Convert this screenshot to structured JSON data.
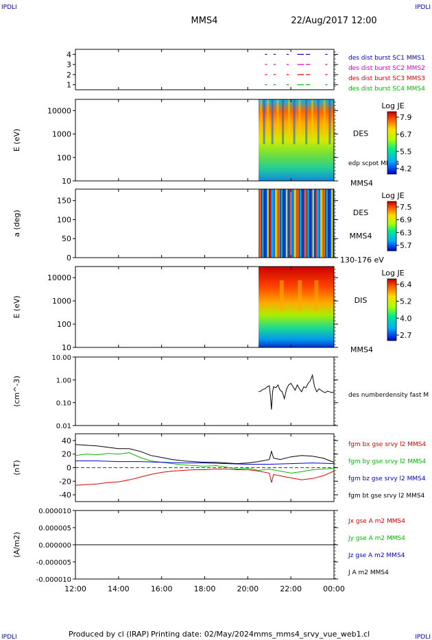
{
  "header": {
    "corner_label": "IPDLI",
    "spacecraft": "MMS4",
    "date": "22/Aug/2017 12:00"
  },
  "footer": {
    "produced_by": "Produced by cl (IRAP)",
    "printing_date": "Printing date: 02/May/2024",
    "filename": "mms_mms4_srvy_vue_web1.cl"
  },
  "chart_data": {
    "type": "line",
    "x_axis": {
      "ticks": [
        "12:00",
        "14:00",
        "16:00",
        "18:00",
        "20:00",
        "22:00",
        "00:00"
      ],
      "range_hours": [
        12,
        24
      ]
    },
    "panels": [
      {
        "id": "burst",
        "ylim": [
          0.5,
          4.5
        ],
        "yticks": [
          "1",
          "2",
          "3",
          "4"
        ],
        "legend": [
          {
            "label": "des dist burst SC1 MMS1",
            "color": "#0000cc"
          },
          {
            "label": "des dist burst SC2 MMS2",
            "color": "#cc00cc"
          },
          {
            "label": "des dist burst SC3 MMS3",
            "color": "#dd0000"
          },
          {
            "label": "des dist burst SC4 MMS4",
            "color": "#00bb00"
          }
        ],
        "burst_intervals_hours": [
          [
            20.8,
            20.9
          ],
          [
            21.2,
            21.3
          ],
          [
            21.8,
            21.9
          ],
          [
            22.3,
            22.6
          ],
          [
            22.7,
            22.9
          ],
          [
            23.6,
            23.7
          ]
        ]
      },
      {
        "id": "des_energy",
        "ylabel": "E (eV)",
        "scale": "log",
        "ylim": [
          10,
          30000
        ],
        "yticks": [
          "10",
          "100",
          "1000",
          "10000"
        ],
        "label_right": "DES",
        "sub_label": "edp scpot MMS4",
        "bottom_label": "MMS4",
        "colorbar": {
          "title": "Log JE",
          "ticks": [
            "7.9",
            "6.7",
            "5.5",
            "4.2"
          ]
        },
        "data_start_hours": 20.5
      },
      {
        "id": "des_pitch",
        "ylabel": "a (deg)",
        "ylim": [
          0,
          180
        ],
        "yticks": [
          "0",
          "50",
          "100",
          "150"
        ],
        "label_right": "DES",
        "sub_label": "MMS4",
        "bottom_label": "130-176 eV",
        "colorbar": {
          "title": "Log JE",
          "ticks": [
            "7.5",
            "6.9",
            "6.3",
            "5.7"
          ]
        },
        "data_start_hours": 20.5
      },
      {
        "id": "dis_energy",
        "ylabel": "E (eV)",
        "scale": "log",
        "ylim": [
          10,
          30000
        ],
        "yticks": [
          "10",
          "100",
          "1000",
          "10000"
        ],
        "label_right": "DIS",
        "bottom_label": "MMS4",
        "colorbar": {
          "title": "Log JE",
          "ticks": [
            "6.4",
            "5.2",
            "4.0",
            "2.7"
          ]
        },
        "data_start_hours": 20.5
      },
      {
        "id": "density",
        "ylabel": "(cm^-3)",
        "scale": "log",
        "ylim": [
          0.01,
          10
        ],
        "yticks": [
          "0.01",
          "0.10",
          "1.00",
          "10.00"
        ],
        "series": [
          {
            "name": "des numberdensity fast M",
            "color": "#000000",
            "x": [
              20.5,
              20.6,
              20.7,
              20.8,
              20.9,
              21.0,
              21.05,
              21.1,
              21.15,
              21.2,
              21.3,
              21.4,
              21.5,
              21.6,
              21.7,
              21.8,
              21.9,
              22.0,
              22.1,
              22.2,
              22.3,
              22.4,
              22.5,
              22.6,
              22.7,
              22.8,
              22.9,
              23.0,
              23.1,
              23.2,
              23.3,
              23.4,
              23.5,
              23.6,
              23.7,
              23.8,
              23.9,
              24.0
            ],
            "y": [
              0.3,
              0.32,
              0.38,
              0.4,
              0.5,
              0.55,
              0.2,
              0.05,
              0.3,
              0.5,
              0.45,
              0.6,
              0.35,
              0.3,
              0.15,
              0.4,
              0.6,
              0.7,
              0.5,
              0.35,
              0.6,
              0.4,
              0.3,
              0.5,
              0.45,
              0.7,
              0.9,
              1.6,
              0.5,
              0.3,
              0.4,
              0.35,
              0.3,
              0.28,
              0.32,
              0.3,
              0.28,
              0.3
            ]
          }
        ]
      },
      {
        "id": "b_field",
        "ylabel": "(nT)",
        "ylim": [
          -50,
          50
        ],
        "yticks": [
          "-40",
          "-20",
          "0",
          "20",
          "40"
        ],
        "series": [
          {
            "name": "fgm bx gse srvy l2 MMS4",
            "color": "#dd0000",
            "x": [
              12,
              12.5,
              13,
              13.5,
              14,
              14.5,
              15,
              15.5,
              16,
              16.5,
              17,
              17.5,
              18,
              18.5,
              19,
              19.5,
              20,
              20.5,
              21,
              21.1,
              21.2,
              21.5,
              22,
              22.5,
              23,
              23.5,
              24
            ],
            "y": [
              -26,
              -25,
              -24,
              -22,
              -21,
              -18,
              -14,
              -10,
              -7,
              -5,
              -4,
              -3,
              -3,
              -2,
              -2,
              -3,
              -3,
              -5,
              -8,
              -22,
              -10,
              -12,
              -15,
              -18,
              -16,
              -12,
              -5
            ]
          },
          {
            "name": "fgm by gse srvy l2 MMS4",
            "color": "#00bb00",
            "x": [
              12,
              12.5,
              13,
              13.5,
              14,
              14.5,
              15,
              15.5,
              16,
              16.5,
              17,
              17.5,
              18,
              18.5,
              19,
              19.5,
              20,
              20.5,
              21,
              21.5,
              22,
              22.5,
              23,
              23.5,
              24
            ],
            "y": [
              18,
              20,
              19,
              21,
              20,
              22,
              15,
              10,
              8,
              6,
              4,
              3,
              2,
              3,
              1,
              -2,
              -1,
              -4,
              -2,
              -5,
              -8,
              -6,
              -3,
              -2,
              -1
            ]
          },
          {
            "name": "fgm bz gse srvy l2 MMS4",
            "color": "#0000cc",
            "x": [
              12,
              13,
              14,
              15,
              16,
              17,
              18,
              19,
              20,
              21,
              22,
              23,
              24
            ],
            "y": [
              10,
              10,
              9,
              9,
              8,
              7,
              7,
              6,
              5,
              5,
              6,
              7,
              6
            ]
          },
          {
            "name": "fgm bt gse srvy l2 MMS4",
            "color": "#000000",
            "x": [
              12,
              12.5,
              13,
              13.5,
              14,
              14.5,
              15,
              15.5,
              16,
              16.5,
              17,
              17.5,
              18,
              18.5,
              19,
              19.5,
              20,
              20.5,
              21,
              21.1,
              21.2,
              21.5,
              22,
              22.5,
              23,
              23.5,
              24
            ],
            "y": [
              34,
              33,
              32,
              30,
              28,
              28,
              24,
              18,
              15,
              12,
              10,
              9,
              8,
              8,
              7,
              6,
              7,
              9,
              12,
              24,
              14,
              12,
              16,
              18,
              17,
              14,
              8
            ]
          }
        ]
      },
      {
        "id": "current",
        "ylabel": "(A/m2)",
        "ylim": [
          -1e-05,
          1e-05
        ],
        "yticks": [
          "-0.000010",
          "-0.000005",
          "0.000000",
          "0.000005",
          "0.000010"
        ],
        "series": [
          {
            "name": "Jx gse A m2 MMS4",
            "color": "#dd0000",
            "x": [
              12,
              24
            ],
            "y": [
              0,
              0
            ]
          },
          {
            "name": "Jy gse A m2 MMS4",
            "color": "#00bb00",
            "x": [
              12,
              24
            ],
            "y": [
              0,
              0
            ]
          },
          {
            "name": "Jz gse A m2 MMS4",
            "color": "#0000cc",
            "x": [
              12,
              24
            ],
            "y": [
              0,
              0
            ]
          },
          {
            "name": "J A m2 MMS4",
            "color": "#000000",
            "x": [
              12,
              24
            ],
            "y": [
              0,
              0
            ]
          }
        ]
      }
    ]
  }
}
